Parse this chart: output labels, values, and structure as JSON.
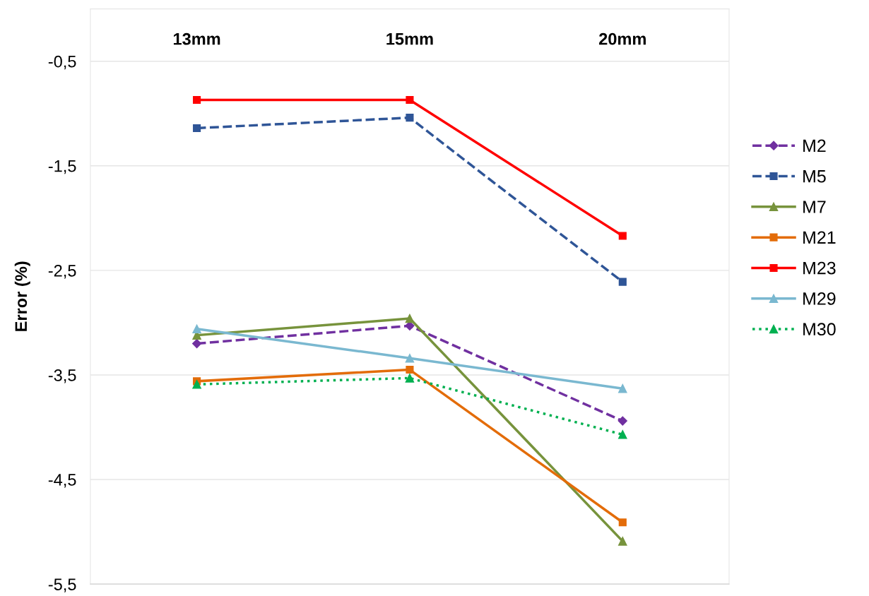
{
  "chart_data": {
    "type": "line",
    "ylabel": "Error (%)",
    "categories": [
      "13mm",
      "15mm",
      "20mm"
    ],
    "ylim": [
      -5.5,
      0
    ],
    "yticks": [
      {
        "value": -0.5,
        "label": "-0,5"
      },
      {
        "value": -1.5,
        "label": "-1,5"
      },
      {
        "value": -2.5,
        "label": "-2,5"
      },
      {
        "value": -3.5,
        "label": "-3,5"
      },
      {
        "value": -4.5,
        "label": "-4,5"
      },
      {
        "value": -5.5,
        "label": "-5,5"
      }
    ],
    "grid": "y",
    "legend": "right",
    "series": [
      {
        "name": "M2",
        "color": "#7030a0",
        "marker": "diamond",
        "line_style": "dashed",
        "values": [
          -3.2,
          -3.03,
          -3.94
        ]
      },
      {
        "name": "M5",
        "color": "#2f5597",
        "marker": "square",
        "line_style": "dashed",
        "values": [
          -1.14,
          -1.04,
          -2.61
        ]
      },
      {
        "name": "M7",
        "color": "#77933c",
        "marker": "triangle",
        "line_style": "solid",
        "values": [
          -3.12,
          -2.96,
          -5.09
        ]
      },
      {
        "name": "M21",
        "color": "#e36c09",
        "marker": "square",
        "line_style": "solid",
        "values": [
          -3.56,
          -3.45,
          -4.91
        ]
      },
      {
        "name": "M23",
        "color": "#ff0000",
        "marker": "square",
        "line_style": "solid",
        "values": [
          -0.87,
          -0.87,
          -2.17
        ]
      },
      {
        "name": "M29",
        "color": "#7ab8d0",
        "marker": "triangle",
        "line_style": "solid",
        "values": [
          -3.06,
          -3.34,
          -3.63
        ]
      },
      {
        "name": "M30",
        "color": "#00b050",
        "marker": "triangle",
        "line_style": "dotted",
        "values": [
          -3.59,
          -3.53,
          -4.07
        ]
      }
    ]
  }
}
